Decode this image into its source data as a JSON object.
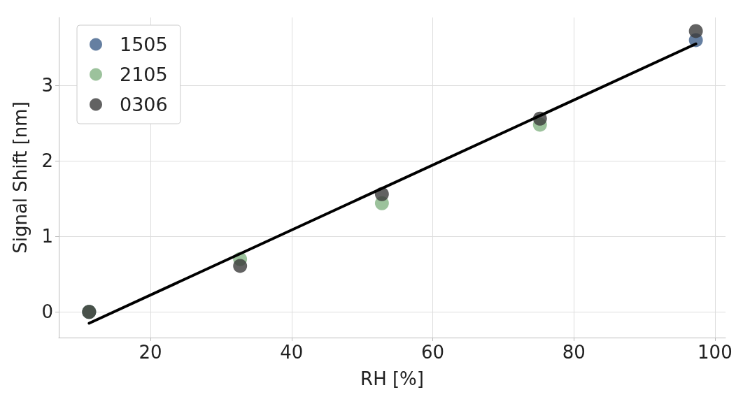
{
  "chart_data": {
    "type": "scatter",
    "xlabel": "RH [%]",
    "ylabel": "Signal Shift [nm]",
    "x": [
      11.3,
      32.7,
      52.8,
      75.2,
      97.3
    ],
    "series": [
      {
        "name": "1505",
        "color": "#3e5f8a",
        "values": [
          0,
          null,
          null,
          null,
          3.6
        ]
      },
      {
        "name": "2105",
        "color": "#83b383",
        "values": [
          0,
          0.7,
          1.44,
          2.48,
          null
        ]
      },
      {
        "name": "0306",
        "color": "#3b3b3b",
        "values": [
          0,
          0.61,
          1.56,
          2.56,
          3.72
        ]
      },
      {
        "type": "line",
        "color": "#000000",
        "x": [
          11.3,
          97.3
        ],
        "values": [
          -0.15,
          3.55
        ],
        "marker": "none",
        "line_style": "solid"
      }
    ],
    "xlim": [
      7,
      101.5
    ],
    "xticks": [
      20,
      40,
      60,
      80,
      100
    ],
    "ylim": [
      -0.34,
      3.9
    ],
    "yticks": [
      0,
      1,
      2,
      3
    ],
    "grid": true,
    "legend": "top left",
    "marker": "circle"
  }
}
